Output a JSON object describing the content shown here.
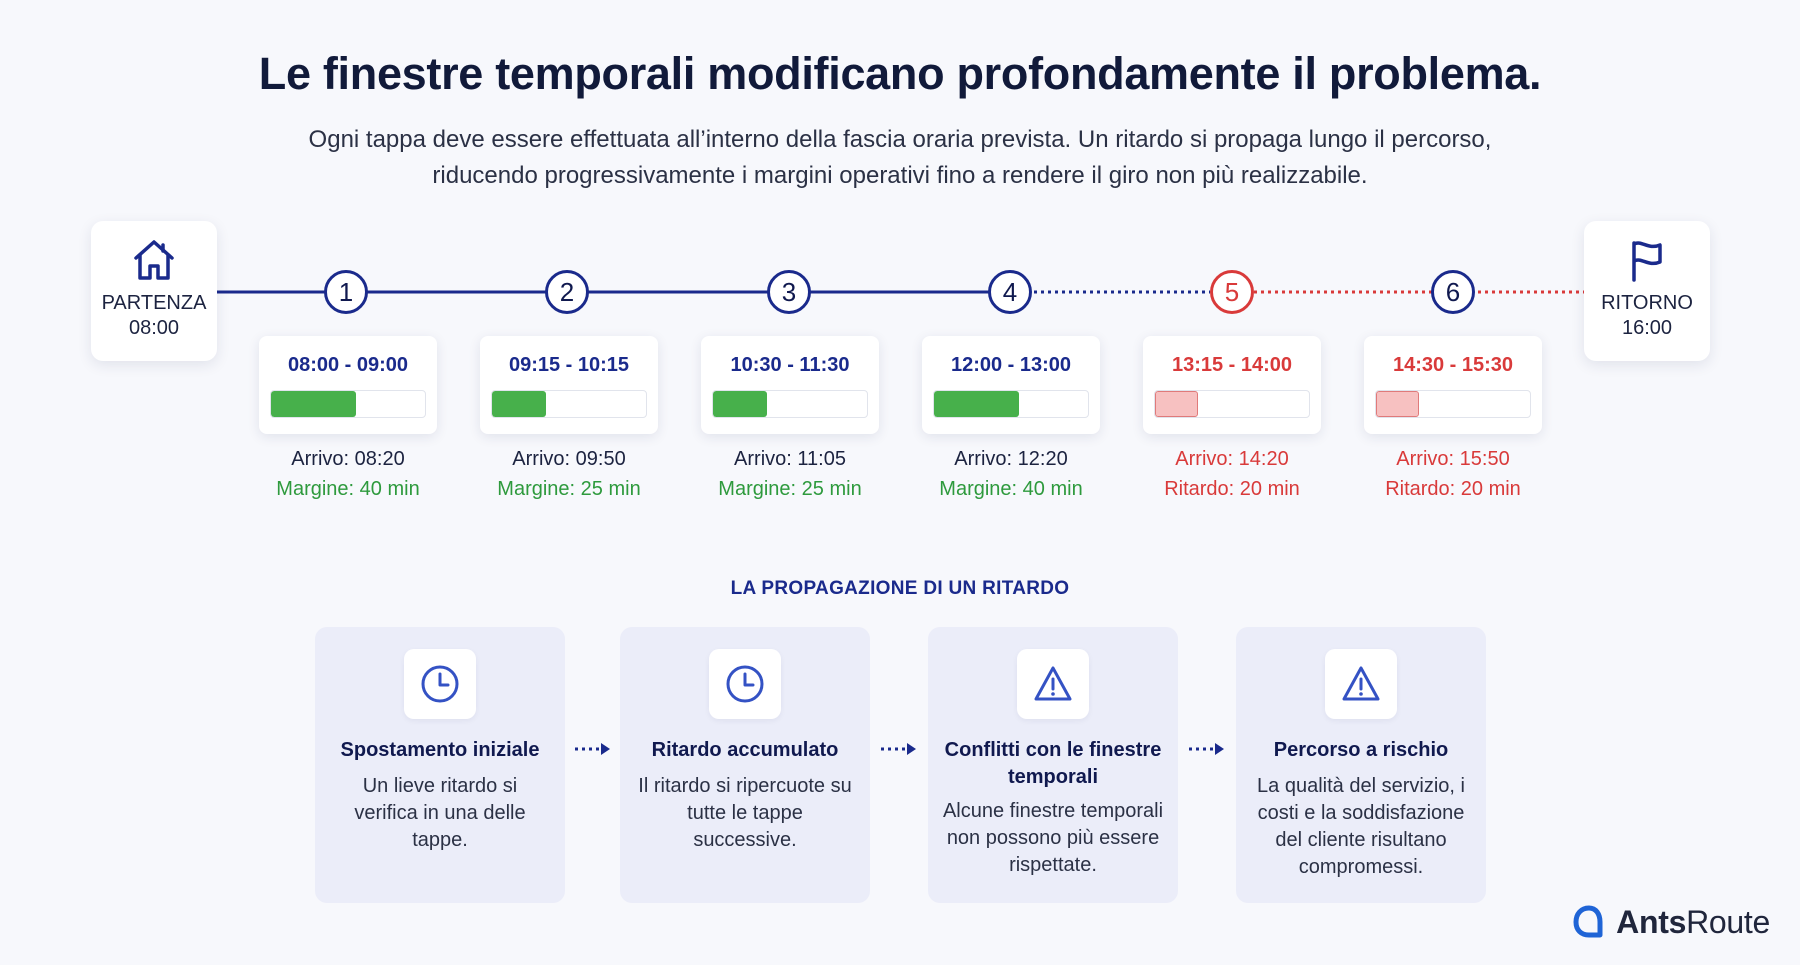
{
  "header": {
    "title": "Le finestre temporali modificano profondamente il problema.",
    "subtitle_line1": "Ogni tappa deve essere effettuata all’interno della fascia oraria prevista. Un ritardo si propaga lungo il percorso,",
    "subtitle_line2": "riducendo progressivamente i margini operativi fino a rendere il giro non più realizzabile."
  },
  "start": {
    "label": "PARTENZA",
    "time": "08:00",
    "icon": "home-icon"
  },
  "end": {
    "label": "RITORNO",
    "time": "16:00",
    "icon": "flag-icon"
  },
  "stops": [
    {
      "number": "1",
      "window": "08:00 - 09:00",
      "fill_fraction": 0.55,
      "arrival": "Arrivo: 08:20",
      "margin": "Margine: 40 min",
      "status": "ok"
    },
    {
      "number": "2",
      "window": "09:15 - 10:15",
      "fill_fraction": 0.35,
      "arrival": "Arrivo: 09:50",
      "margin": "Margine: 25 min",
      "status": "ok"
    },
    {
      "number": "3",
      "window": "10:30 - 11:30",
      "fill_fraction": 0.35,
      "arrival": "Arrivo: 11:05",
      "margin": "Margine: 25 min",
      "status": "ok"
    },
    {
      "number": "4",
      "window": "12:00 - 13:00",
      "fill_fraction": 0.55,
      "arrival": "Arrivo: 12:20",
      "margin": "Margine: 40 min",
      "status": "ok"
    },
    {
      "number": "5",
      "window": "13:15 - 14:00",
      "fill_fraction": 0.28,
      "arrival": "Arrivo: 14:20",
      "margin": "Ritardo: 20 min",
      "status": "late"
    },
    {
      "number": "6",
      "window": "14:30 - 15:30",
      "fill_fraction": 0.28,
      "arrival": "Arrivo: 15:50",
      "margin": "Ritardo: 20 min",
      "status": "late"
    }
  ],
  "propagation": {
    "heading": "LA PROPAGAZIONE DI UN RITARDO",
    "steps": [
      {
        "title": "Spostamento iniziale",
        "desc": "Un lieve ritardo si verifica in una delle tappe.",
        "icon": "clock-icon"
      },
      {
        "title": "Ritardo accumulato",
        "desc": "Il ritardo si ripercuote su tutte le tappe successive.",
        "icon": "clock-icon"
      },
      {
        "title": "Conflitti con le finestre temporali",
        "desc": "Alcune finestre temporali non possono più essere rispettate.",
        "icon": "warning-icon"
      },
      {
        "title": "Percorso a rischio",
        "desc": "La qualità del servizio, i costi e la soddisfazione del cliente risultano compromessi.",
        "icon": "warning-icon"
      }
    ]
  },
  "brand": {
    "name_bold": "Ants",
    "name_light": "Route",
    "icon": "antsroute-logo-icon"
  },
  "colors": {
    "navy": "#1a2a8c",
    "late_red": "#d93a3a",
    "ok_green": "#47b04b",
    "late_fill": "#f7c1c1",
    "card_bg": "#ebedf9"
  }
}
